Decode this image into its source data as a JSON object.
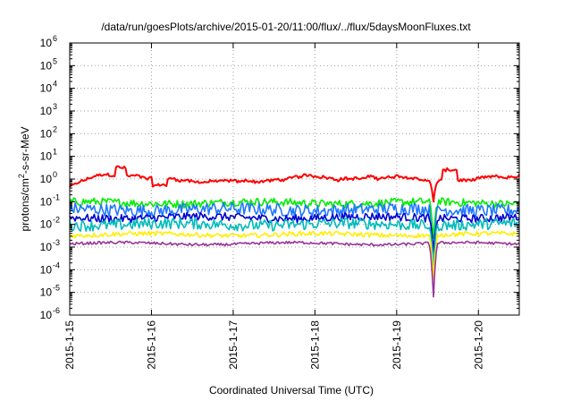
{
  "chart_data": {
    "type": "line",
    "title": "/data/run/goesPlots/archive/2015-01-20/11:00/flux/../flux/5daysMoonFluxes.txt",
    "xlabel": "Coordinated Universal Time (UTC)",
    "ylabel_parts": {
      "prefix": "protons/cm",
      "superscript": "2",
      "suffix": "-s-sr-MeV"
    },
    "y_scale": "log",
    "ylim_exponents": [
      -6,
      6
    ],
    "y_tick_exponents": [
      -6,
      -5,
      -4,
      -3,
      -2,
      -1,
      0,
      1,
      2,
      3,
      4,
      5,
      6
    ],
    "y_tick_base": "10",
    "x_range_days": [
      "2015-1-15",
      "2015-1-20 12:00"
    ],
    "x_ticks": [
      "2015-1-15",
      "2015-1-16",
      "2015-1-17",
      "2015-1-18",
      "2015-1-19",
      "2015-1-20"
    ],
    "grid": true,
    "event": {
      "day_offset": 4.45,
      "note": "sharp dip near 2015-1-19 ~11:00 UTC"
    },
    "series": [
      {
        "color": "#ff0000",
        "base_log": 0.0,
        "noise": 0.12,
        "dip_min_log": -1.0
      },
      {
        "color": "#00ee00",
        "base_log": -1.05,
        "noise": 0.18,
        "dip_min_log": -2.6
      },
      {
        "color": "#1e78ff",
        "base_log": -1.35,
        "noise": 0.28,
        "dip_min_log": -3.5
      },
      {
        "color": "#0000cc",
        "base_log": -1.7,
        "noise": 0.18,
        "dip_min_log": -3.2
      },
      {
        "color": "#00bbbb",
        "base_log": -2.0,
        "noise": 0.25,
        "dip_min_log": -3.8
      },
      {
        "color": "#ffee00",
        "base_log": -2.45,
        "noise": 0.1,
        "dip_min_log": -4.4
      },
      {
        "color": "#993399",
        "base_log": -2.85,
        "noise": 0.06,
        "dip_min_log": -5.2
      }
    ]
  }
}
